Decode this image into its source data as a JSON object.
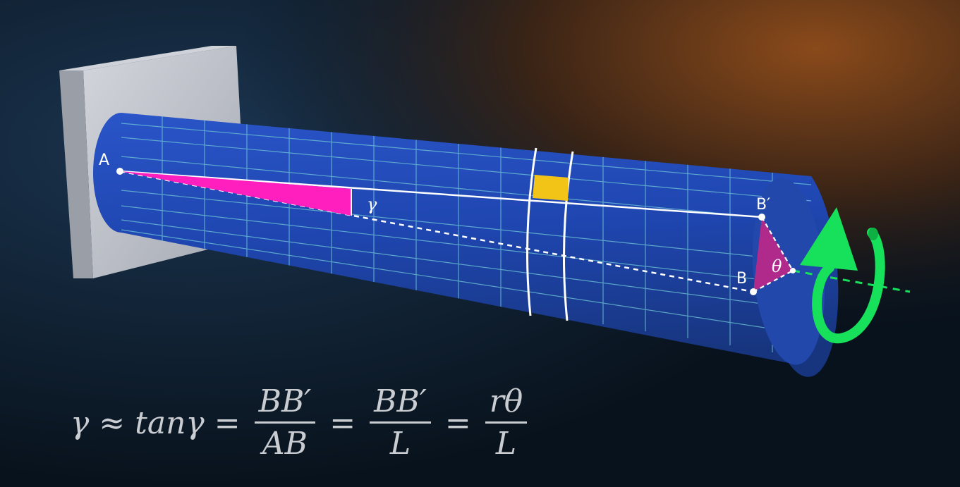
{
  "labels": {
    "point_a": "A",
    "point_b": "B",
    "point_b_prime": "B′",
    "gamma": "γ",
    "theta": "θ"
  },
  "equation": {
    "lhs_gamma": "γ",
    "approx": "≈",
    "tan_gamma": "tanγ",
    "eq1": "=",
    "frac1_num": "BB′",
    "frac1_den": "AB",
    "eq2": "=",
    "frac2_num": "BB′",
    "frac2_den": "L",
    "eq3": "=",
    "frac3_num": "rθ",
    "frac3_den": "L"
  },
  "colors": {
    "shaft": "#1f46b0",
    "grid": "#6fc7d6",
    "shear_triangle": "#ff1fbf",
    "twist_sector": "#b02a8c",
    "element_square": "#f3c418",
    "rotation_arrow": "#17e05a",
    "wall": "#b9bcc4"
  }
}
